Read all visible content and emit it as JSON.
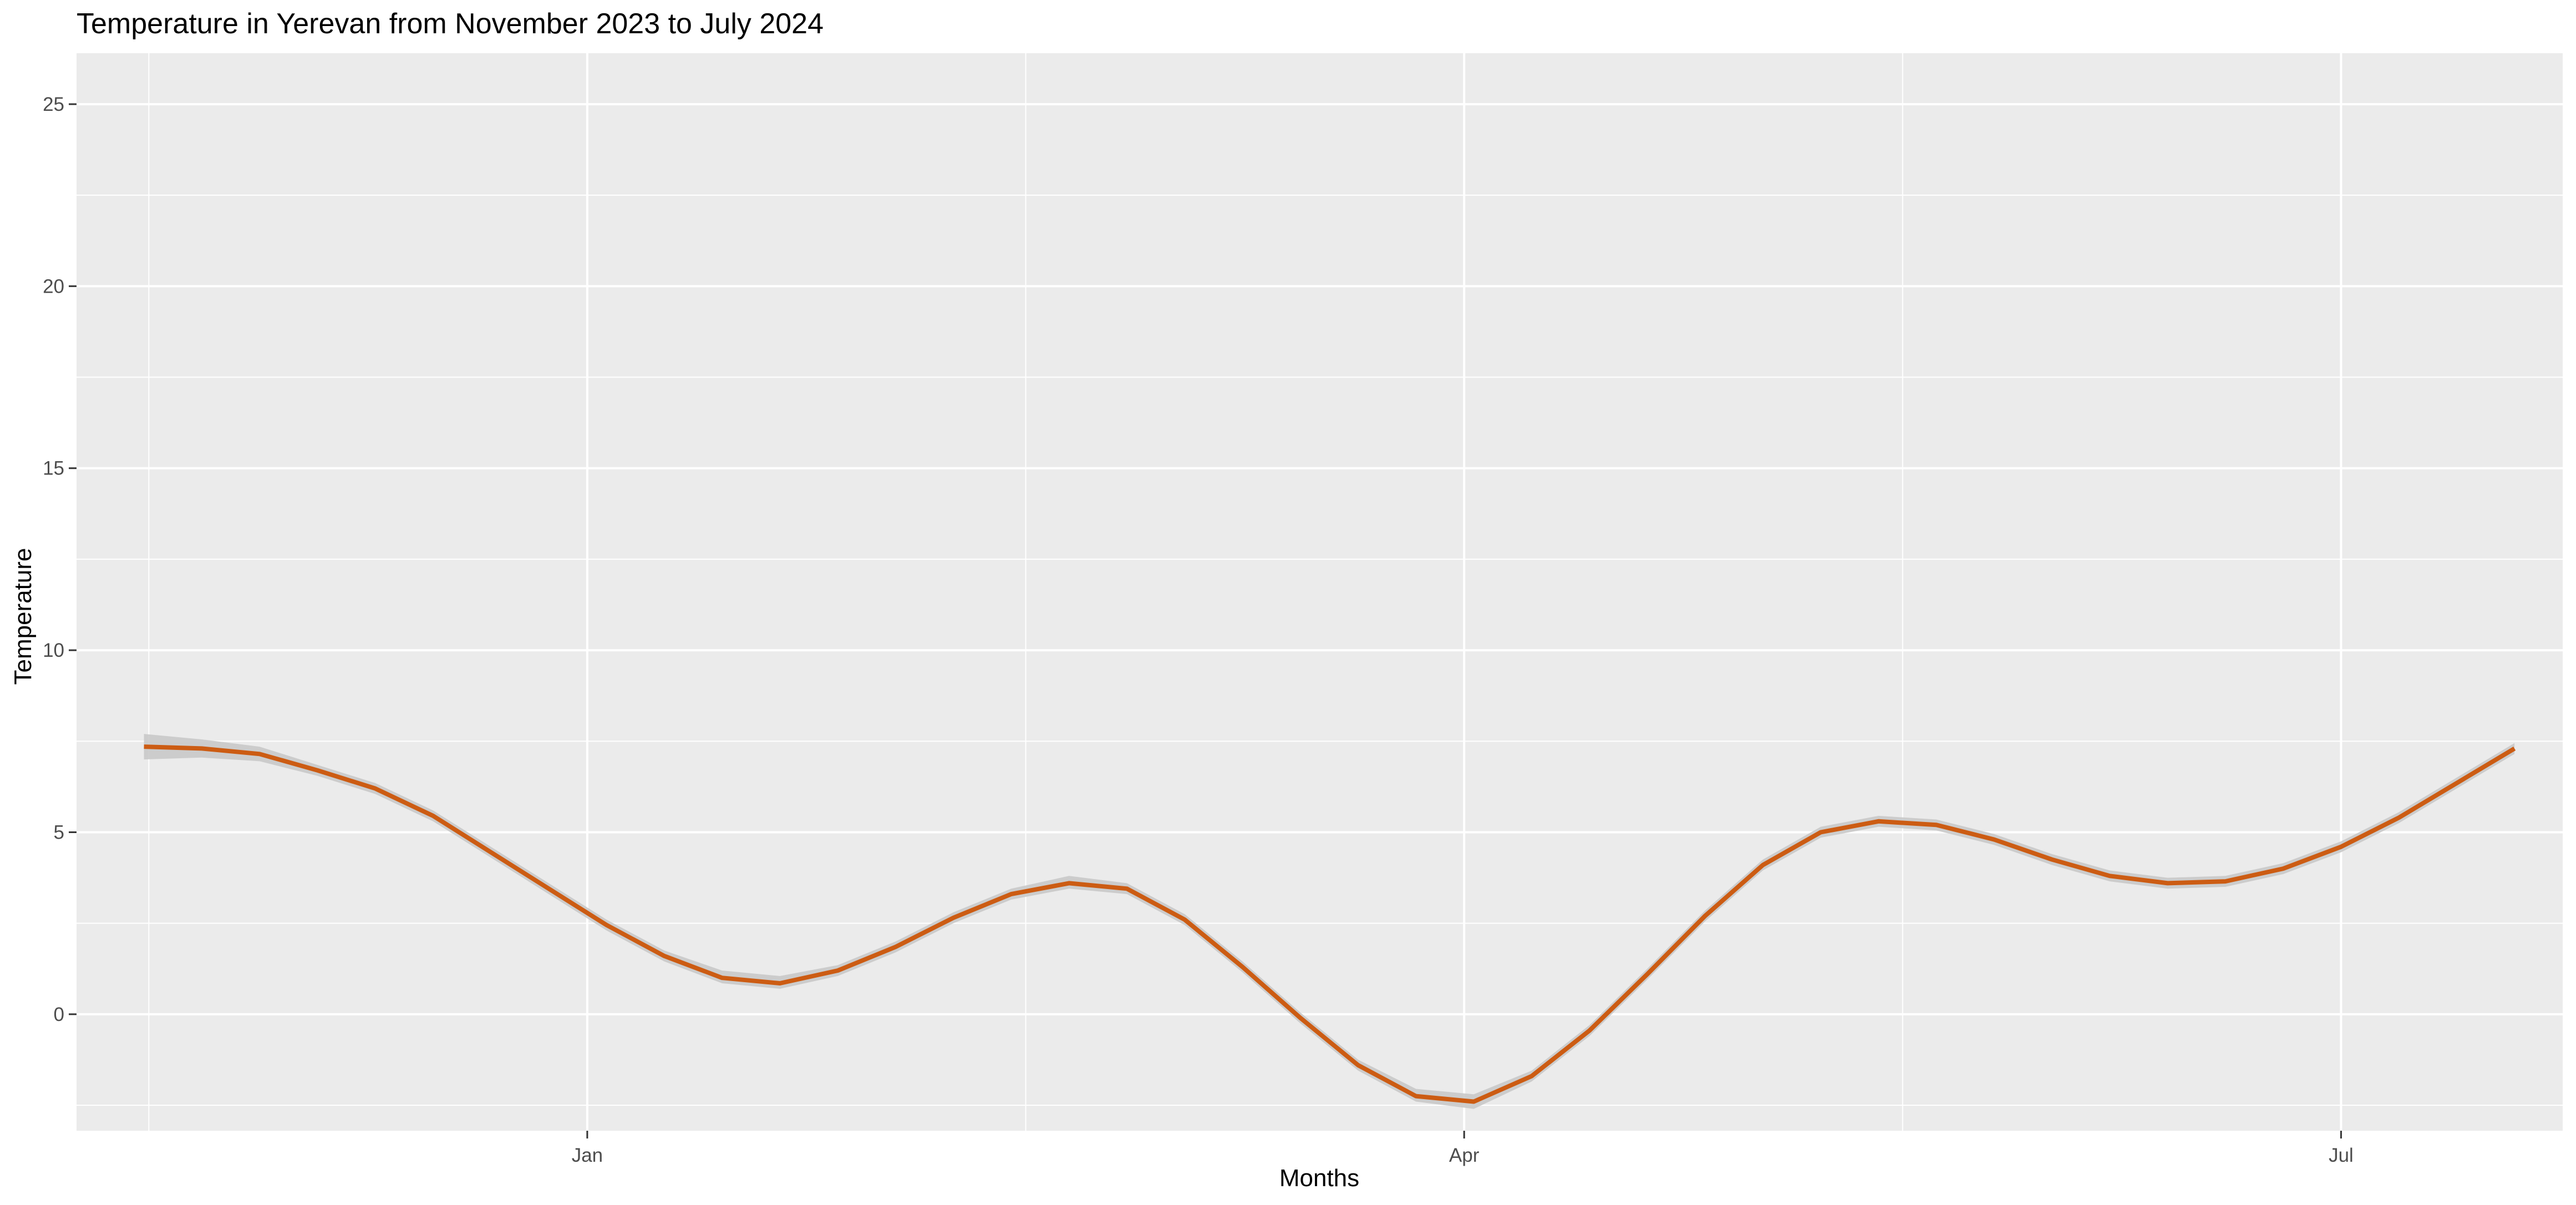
{
  "chart_data": {
    "type": "line",
    "title": "Temperature in Yerevan from November 2023 to July 2024",
    "xlabel": "Months",
    "ylabel": "Temperature",
    "x_ticks": [
      {
        "label": "Jan",
        "date": "2024-01-01"
      },
      {
        "label": "Apr",
        "date": "2024-04-01"
      },
      {
        "label": "Jul",
        "date": "2024-07-01"
      }
    ],
    "y_ticks": [
      0,
      5,
      10,
      15,
      20,
      25
    ],
    "xlim": [
      "2023-11-09",
      "2024-07-24"
    ],
    "ylim": [
      -3.2,
      26.4
    ],
    "grid": true,
    "legend": "none",
    "colors": {
      "line": "#cc5c13",
      "band": "#c9c9c9",
      "panel": "#ebebeb",
      "grid": "#ffffff"
    },
    "series": [
      {
        "smoothed": true,
        "confidence_band": true,
        "points": [
          {
            "x": "2023-11-16",
            "y": 7.35,
            "lo": 7.0,
            "hi": 7.7
          },
          {
            "x": "2023-11-22",
            "y": 7.3,
            "lo": 7.05,
            "hi": 7.55
          },
          {
            "x": "2023-11-28",
            "y": 7.15,
            "lo": 6.95,
            "hi": 7.35
          },
          {
            "x": "2023-12-04",
            "y": 6.7,
            "lo": 6.55,
            "hi": 6.85
          },
          {
            "x": "2023-12-10",
            "y": 6.2,
            "lo": 6.05,
            "hi": 6.35
          },
          {
            "x": "2023-12-16",
            "y": 5.45,
            "lo": 5.3,
            "hi": 5.6
          },
          {
            "x": "2023-12-22",
            "y": 4.45,
            "lo": 4.3,
            "hi": 4.6
          },
          {
            "x": "2023-12-28",
            "y": 3.45,
            "lo": 3.3,
            "hi": 3.6
          },
          {
            "x": "2024-01-03",
            "y": 2.45,
            "lo": 2.3,
            "hi": 2.6
          },
          {
            "x": "2024-01-09",
            "y": 1.6,
            "lo": 1.45,
            "hi": 1.75
          },
          {
            "x": "2024-01-15",
            "y": 1.0,
            "lo": 0.85,
            "hi": 1.2
          },
          {
            "x": "2024-01-21",
            "y": 0.85,
            "lo": 0.7,
            "hi": 1.05
          },
          {
            "x": "2024-01-27",
            "y": 1.2,
            "lo": 1.05,
            "hi": 1.35
          },
          {
            "x": "2024-02-02",
            "y": 1.85,
            "lo": 1.7,
            "hi": 2.0
          },
          {
            "x": "2024-02-08",
            "y": 2.65,
            "lo": 2.5,
            "hi": 2.8
          },
          {
            "x": "2024-02-14",
            "y": 3.3,
            "lo": 3.15,
            "hi": 3.45
          },
          {
            "x": "2024-02-20",
            "y": 3.6,
            "lo": 3.45,
            "hi": 3.8
          },
          {
            "x": "2024-02-26",
            "y": 3.45,
            "lo": 3.3,
            "hi": 3.6
          },
          {
            "x": "2024-03-03",
            "y": 2.6,
            "lo": 2.45,
            "hi": 2.75
          },
          {
            "x": "2024-03-09",
            "y": 1.3,
            "lo": 1.15,
            "hi": 1.45
          },
          {
            "x": "2024-03-15",
            "y": -0.1,
            "lo": -0.25,
            "hi": 0.05
          },
          {
            "x": "2024-03-21",
            "y": -1.4,
            "lo": -1.55,
            "hi": -1.25
          },
          {
            "x": "2024-03-27",
            "y": -2.25,
            "lo": -2.4,
            "hi": -2.05
          },
          {
            "x": "2024-04-02",
            "y": -2.4,
            "lo": -2.6,
            "hi": -2.2
          },
          {
            "x": "2024-04-08",
            "y": -1.7,
            "lo": -1.85,
            "hi": -1.55
          },
          {
            "x": "2024-04-14",
            "y": -0.45,
            "lo": -0.6,
            "hi": -0.3
          },
          {
            "x": "2024-04-20",
            "y": 1.1,
            "lo": 0.95,
            "hi": 1.25
          },
          {
            "x": "2024-04-26",
            "y": 2.7,
            "lo": 2.55,
            "hi": 2.85
          },
          {
            "x": "2024-05-02",
            "y": 4.1,
            "lo": 3.95,
            "hi": 4.25
          },
          {
            "x": "2024-05-08",
            "y": 5.0,
            "lo": 4.85,
            "hi": 5.15
          },
          {
            "x": "2024-05-14",
            "y": 5.3,
            "lo": 5.15,
            "hi": 5.45
          },
          {
            "x": "2024-05-20",
            "y": 5.2,
            "lo": 5.05,
            "hi": 5.35
          },
          {
            "x": "2024-05-26",
            "y": 4.8,
            "lo": 4.65,
            "hi": 4.95
          },
          {
            "x": "2024-06-01",
            "y": 4.25,
            "lo": 4.1,
            "hi": 4.4
          },
          {
            "x": "2024-06-07",
            "y": 3.8,
            "lo": 3.65,
            "hi": 3.95
          },
          {
            "x": "2024-06-13",
            "y": 3.6,
            "lo": 3.45,
            "hi": 3.75
          },
          {
            "x": "2024-06-19",
            "y": 3.65,
            "lo": 3.5,
            "hi": 3.8
          },
          {
            "x": "2024-06-25",
            "y": 4.0,
            "lo": 3.85,
            "hi": 4.15
          },
          {
            "x": "2024-07-01",
            "y": 4.6,
            "lo": 4.45,
            "hi": 4.75
          },
          {
            "x": "2024-07-07",
            "y": 5.4,
            "lo": 5.25,
            "hi": 5.55
          },
          {
            "x": "2024-07-13",
            "y": 6.35,
            "lo": 6.2,
            "hi": 6.5
          },
          {
            "x": "2024-07-19",
            "y": 7.3,
            "lo": 7.15,
            "hi": 7.45
          }
        ]
      }
    ]
  }
}
